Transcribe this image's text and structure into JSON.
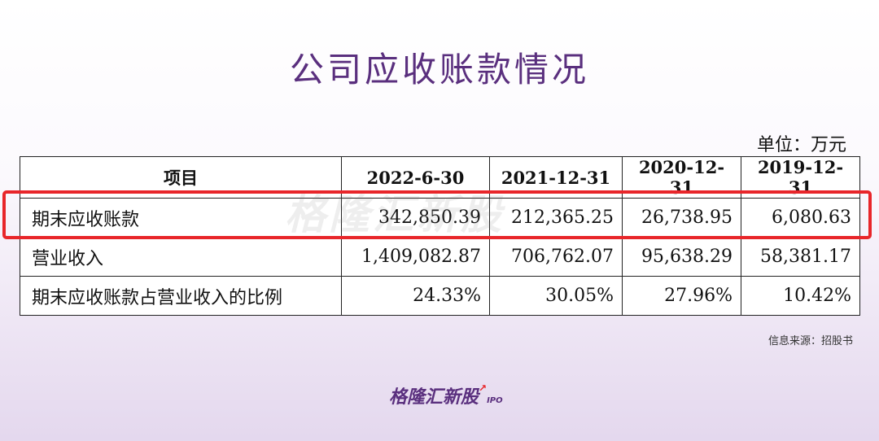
{
  "title": "公司应收账款情况",
  "unit": "单位：万元",
  "table": {
    "headers": [
      "项目",
      "2022-6-30",
      "2021-12-31",
      "2020-12-31",
      "2019-12-31"
    ],
    "rows": [
      {
        "label": "期末应收账款",
        "values": [
          "342,850.39",
          "212,365.25",
          "26,738.95",
          "6,080.63"
        ]
      },
      {
        "label": "营业收入",
        "values": [
          "1,409,082.87",
          "706,762.07",
          "95,638.29",
          "58,381.17"
        ]
      },
      {
        "label": "期末应收账款占营业收入的比例",
        "values": [
          "24.33%",
          "30.05%",
          "27.96%",
          "10.42%"
        ]
      }
    ]
  },
  "watermark": "格隆汇新股",
  "source": "信息来源：招股书",
  "logo": {
    "text": "格隆汇新股",
    "suffix": "IPO"
  },
  "colors": {
    "title": "#5a2f7e",
    "highlight": "#e8262a"
  }
}
